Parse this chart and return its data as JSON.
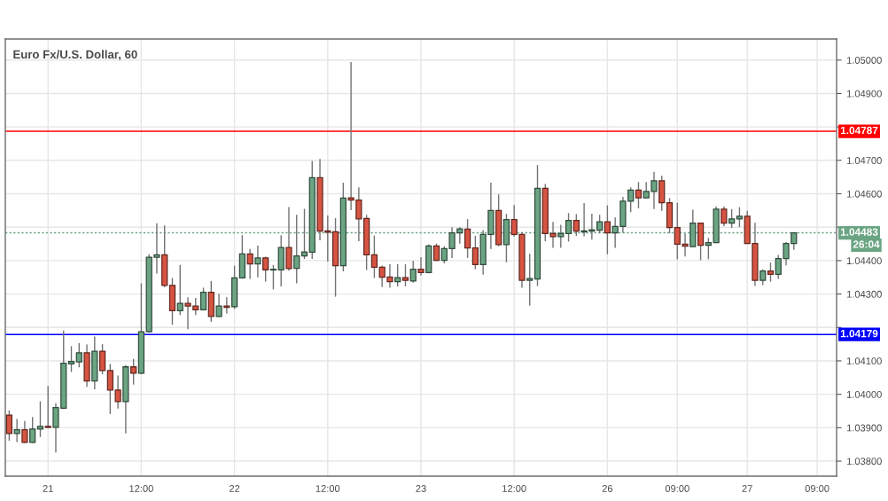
{
  "chart_data": {
    "type": "candlestick",
    "title": "Euro Fx/U.S. Dollar, 60",
    "categories": [
      null,
      null,
      null,
      null,
      null,
      "21",
      null,
      null,
      null,
      null,
      null,
      null,
      null,
      null,
      null,
      null,
      null,
      "12:00",
      null,
      null,
      null,
      null,
      null,
      null,
      null,
      null,
      null,
      null,
      null,
      "22",
      null,
      null,
      null,
      null,
      null,
      null,
      null,
      null,
      null,
      null,
      null,
      "12:00",
      null,
      null,
      null,
      null,
      null,
      null,
      null,
      null,
      null,
      null,
      null,
      "23",
      null,
      null,
      null,
      null,
      null,
      null,
      null,
      null,
      null,
      null,
      null,
      "12:00",
      null,
      null,
      null,
      null,
      null,
      null,
      null,
      null,
      null,
      null,
      null,
      "26",
      null,
      null,
      null,
      null,
      null,
      null,
      null,
      null,
      "09:00",
      null,
      null,
      null,
      null,
      null,
      null,
      null,
      null,
      "27",
      null,
      null,
      null,
      null,
      null,
      null,
      null,
      null,
      "09:00",
      null,
      null
    ],
    "ohlc": [
      [
        1.03938,
        1.03952,
        1.03861,
        1.03883
      ],
      [
        1.03883,
        1.03926,
        1.03857,
        1.03894
      ],
      [
        1.03894,
        1.0392,
        1.03854,
        1.03856
      ],
      [
        1.03856,
        1.03932,
        1.03854,
        1.03896
      ],
      [
        1.03896,
        1.03979,
        1.03872,
        1.03904
      ],
      [
        1.03904,
        1.04025,
        1.03899,
        1.03901
      ],
      [
        1.03901,
        1.03973,
        1.03826,
        1.0396
      ],
      [
        1.03958,
        1.04191,
        1.03956,
        1.04093
      ],
      [
        1.04091,
        1.04144,
        1.04067,
        1.04098
      ],
      [
        1.04097,
        1.04153,
        1.04081,
        1.04124
      ],
      [
        1.04124,
        1.04149,
        1.04022,
        1.0404
      ],
      [
        1.0404,
        1.04173,
        1.04015,
        1.04129
      ],
      [
        1.04129,
        1.0415,
        1.0406,
        1.04071
      ],
      [
        1.04071,
        1.04091,
        1.03941,
        1.04013
      ],
      [
        1.04013,
        1.04056,
        1.03957,
        1.03978
      ],
      [
        1.03978,
        1.04087,
        1.03883,
        1.04082
      ],
      [
        1.04082,
        1.04106,
        1.04029,
        1.04063
      ],
      [
        1.04063,
        1.04332,
        1.0406,
        1.04187
      ],
      [
        1.04187,
        1.04419,
        1.04184,
        1.0441
      ],
      [
        1.0441,
        1.04512,
        1.04361,
        1.04417
      ],
      [
        1.04417,
        1.04505,
        1.04321,
        1.04326
      ],
      [
        1.04326,
        1.04348,
        1.04208,
        1.0425
      ],
      [
        1.0425,
        1.04387,
        1.04237,
        1.04272
      ],
      [
        1.04272,
        1.0429,
        1.04195,
        1.04264
      ],
      [
        1.04264,
        1.04288,
        1.04237,
        1.04253
      ],
      [
        1.04253,
        1.04319,
        1.04251,
        1.04305
      ],
      [
        1.04305,
        1.04339,
        1.04217,
        1.04233
      ],
      [
        1.04233,
        1.04301,
        1.04231,
        1.04264
      ],
      [
        1.04264,
        1.0429,
        1.04242,
        1.0426
      ],
      [
        1.04262,
        1.04385,
        1.04255,
        1.04348
      ],
      [
        1.04348,
        1.04476,
        1.04346,
        1.0442
      ],
      [
        1.0442,
        1.04435,
        1.04345,
        1.0439
      ],
      [
        1.0439,
        1.04445,
        1.0435,
        1.04408
      ],
      [
        1.04408,
        1.04412,
        1.04337,
        1.04372
      ],
      [
        1.04372,
        1.04387,
        1.04314,
        1.04374
      ],
      [
        1.04372,
        1.04476,
        1.04323,
        1.04439
      ],
      [
        1.04439,
        1.0456,
        1.0437,
        1.04376
      ],
      [
        1.04377,
        1.04537,
        1.04332,
        1.04414
      ],
      [
        1.04414,
        1.04555,
        1.04405,
        1.04426
      ],
      [
        1.04425,
        1.04698,
        1.04405,
        1.04648
      ],
      [
        1.04648,
        1.04704,
        1.04461,
        1.04488
      ],
      [
        1.04489,
        1.04535,
        1.04397,
        1.04485
      ],
      [
        1.04486,
        1.04527,
        1.04292,
        1.04385
      ],
      [
        1.04385,
        1.04633,
        1.04368,
        1.04587
      ],
      [
        1.04588,
        1.04994,
        1.04551,
        1.04581
      ],
      [
        1.04581,
        1.04619,
        1.04458,
        1.04525
      ],
      [
        1.04526,
        1.04537,
        1.04372,
        1.04417
      ],
      [
        1.04417,
        1.04475,
        1.04348,
        1.0438
      ],
      [
        1.0438,
        1.04385,
        1.04321,
        1.0435
      ],
      [
        1.04351,
        1.04389,
        1.04319,
        1.04337
      ],
      [
        1.04337,
        1.04389,
        1.04323,
        1.04349
      ],
      [
        1.04349,
        1.04389,
        1.04323,
        1.04341
      ],
      [
        1.04339,
        1.04399,
        1.04334,
        1.04374
      ],
      [
        1.04374,
        1.0441,
        1.04355,
        1.04364
      ],
      [
        1.04364,
        1.04449,
        1.04362,
        1.04444
      ],
      [
        1.04444,
        1.04451,
        1.04399,
        1.04401
      ],
      [
        1.04401,
        1.04443,
        1.04392,
        1.04436
      ],
      [
        1.04436,
        1.045,
        1.04408,
        1.04483
      ],
      [
        1.04483,
        1.045,
        1.04451,
        1.04495
      ],
      [
        1.04494,
        1.04524,
        1.04408,
        1.04438
      ],
      [
        1.04438,
        1.04474,
        1.04374,
        1.04388
      ],
      [
        1.04388,
        1.04491,
        1.04358,
        1.04478
      ],
      [
        1.04478,
        1.04633,
        1.04435,
        1.0455
      ],
      [
        1.0455,
        1.04598,
        1.04443,
        1.04448
      ],
      [
        1.04448,
        1.0454,
        1.04395,
        1.04523
      ],
      [
        1.04523,
        1.04566,
        1.04472,
        1.04478
      ],
      [
        1.04478,
        1.04485,
        1.04319,
        1.04341
      ],
      [
        1.04341,
        1.0442,
        1.04265,
        1.04346
      ],
      [
        1.04345,
        1.04686,
        1.04324,
        1.04616
      ],
      [
        1.04616,
        1.04629,
        1.04458,
        1.04481
      ],
      [
        1.04481,
        1.04516,
        1.04438,
        1.04472
      ],
      [
        1.04472,
        1.04507,
        1.04438,
        1.04481
      ],
      [
        1.04481,
        1.04542,
        1.04457,
        1.0452
      ],
      [
        1.0452,
        1.04539,
        1.04474,
        1.04488
      ],
      [
        1.04486,
        1.04572,
        1.04473,
        1.04489
      ],
      [
        1.04488,
        1.0454,
        1.04463,
        1.04492
      ],
      [
        1.04491,
        1.04537,
        1.04482,
        1.04516
      ],
      [
        1.04516,
        1.04565,
        1.04419,
        1.04483
      ],
      [
        1.04483,
        1.04529,
        1.04438,
        1.04502
      ],
      [
        1.04502,
        1.04591,
        1.04483,
        1.04578
      ],
      [
        1.04578,
        1.04619,
        1.04545,
        1.04611
      ],
      [
        1.04611,
        1.04635,
        1.04556,
        1.04588
      ],
      [
        1.04588,
        1.04635,
        1.04586,
        1.04607
      ],
      [
        1.04607,
        1.04666,
        1.04554,
        1.04639
      ],
      [
        1.04639,
        1.04654,
        1.04549,
        1.04573
      ],
      [
        1.04573,
        1.04587,
        1.04482,
        1.04499
      ],
      [
        1.04499,
        1.04573,
        1.04404,
        1.04449
      ],
      [
        1.04449,
        1.04481,
        1.04412,
        1.04443
      ],
      [
        1.04442,
        1.04552,
        1.0444,
        1.04512
      ],
      [
        1.04512,
        1.04514,
        1.04401,
        1.04446
      ],
      [
        1.04446,
        1.04468,
        1.04404,
        1.04454
      ],
      [
        1.04454,
        1.04562,
        1.04453,
        1.04554
      ],
      [
        1.04554,
        1.04562,
        1.04503,
        1.04512
      ],
      [
        1.04512,
        1.04554,
        1.04498,
        1.04525
      ],
      [
        1.04525,
        1.0456,
        1.045,
        1.04533
      ],
      [
        1.04533,
        1.04549,
        1.0445,
        1.04451
      ],
      [
        1.04451,
        1.04513,
        1.04324,
        1.04341
      ],
      [
        1.04341,
        1.04374,
        1.04327,
        1.04369
      ],
      [
        1.04369,
        1.04394,
        1.04337,
        1.04359
      ],
      [
        1.04359,
        1.04417,
        1.04345,
        1.04406
      ],
      [
        1.04406,
        1.04456,
        1.04386,
        1.04451
      ],
      [
        1.04451,
        1.04484,
        1.04432,
        1.04483
      ],
      null,
      null,
      null,
      null,
      null
    ],
    "colors": [
      "#d75442",
      "#6ba583",
      "#d75442",
      "#6ba583",
      "#6ba583",
      "#d75442",
      "#6ba583",
      "#6ba583",
      "#6ba583",
      "#6ba583",
      "#d75442",
      "#6ba583",
      "#d75442",
      "#d75442",
      "#d75442",
      "#6ba583",
      "#d75442",
      "#6ba583",
      "#6ba583",
      "#6ba583",
      "#d75442",
      "#d75442",
      "#6ba583",
      "#d75442",
      "#d75442",
      "#6ba583",
      "#d75442",
      "#6ba583",
      "#d75442",
      "#6ba583",
      "#6ba583",
      "#d75442",
      "#6ba583",
      "#d75442",
      "#6ba583",
      "#6ba583",
      "#d75442",
      "#6ba583",
      "#6ba583",
      "#6ba583",
      "#d75442",
      "#d75442",
      "#d75442",
      "#6ba583",
      "#d75442",
      "#d75442",
      "#d75442",
      "#d75442",
      "#d75442",
      "#d75442",
      "#6ba583",
      "#d75442",
      "#6ba583",
      "#d75442",
      "#6ba583",
      "#d75442",
      "#6ba583",
      "#6ba583",
      "#6ba583",
      "#d75442",
      "#d75442",
      "#6ba583",
      "#6ba583",
      "#d75442",
      "#6ba583",
      "#d75442",
      "#d75442",
      "#6ba583",
      "#6ba583",
      "#d75442",
      "#d75442",
      "#6ba583",
      "#6ba583",
      "#d75442",
      "#6ba583",
      "#6ba583",
      "#6ba583",
      "#d75442",
      "#6ba583",
      "#6ba583",
      "#6ba583",
      "#d75442",
      "#6ba583",
      "#6ba583",
      "#d75442",
      "#d75442",
      "#d75442",
      "#d75442",
      "#6ba583",
      "#d75442",
      "#6ba583",
      "#6ba583",
      "#d75442",
      "#6ba583",
      "#6ba583",
      "#d75442",
      "#d75442",
      "#6ba583",
      "#d75442",
      "#6ba583",
      "#6ba583",
      "#6ba583",
      null,
      null,
      null,
      null,
      null
    ],
    "ylim": [
      1.03755,
      1.05063
    ],
    "yticks": [
      {
        "value": 1.038,
        "label": "1.03800"
      },
      {
        "value": 1.039,
        "label": "1.03900"
      },
      {
        "value": 1.04,
        "label": "1.04000"
      },
      {
        "value": 1.041,
        "label": "1.04100"
      },
      {
        "value": 1.042,
        "label": null
      },
      {
        "value": 1.043,
        "label": "1.04300"
      },
      {
        "value": 1.044,
        "label": "1.04400"
      },
      {
        "value": 1.045,
        "label": null
      },
      {
        "value": 1.046,
        "label": "1.04600"
      },
      {
        "value": 1.047,
        "label": "1.04700"
      },
      {
        "value": 1.048,
        "label": null
      },
      {
        "value": 1.049,
        "label": "1.04900"
      },
      {
        "value": 1.05,
        "label": "1.05000"
      }
    ],
    "grid": true,
    "ref_lines": [
      {
        "axis": "y",
        "value": 1.04787,
        "label": "1.04787",
        "color": "#ff0000",
        "line_style": "solid"
      },
      {
        "axis": "y",
        "value": 1.04179,
        "label": "1.04179",
        "color": "#0000ff",
        "line_style": "solid"
      },
      {
        "axis": "y",
        "value": 1.04483,
        "label": "1.04483",
        "color": "#6ba583",
        "line_style": "dotted"
      }
    ],
    "annotations": [
      "26:04"
    ]
  }
}
